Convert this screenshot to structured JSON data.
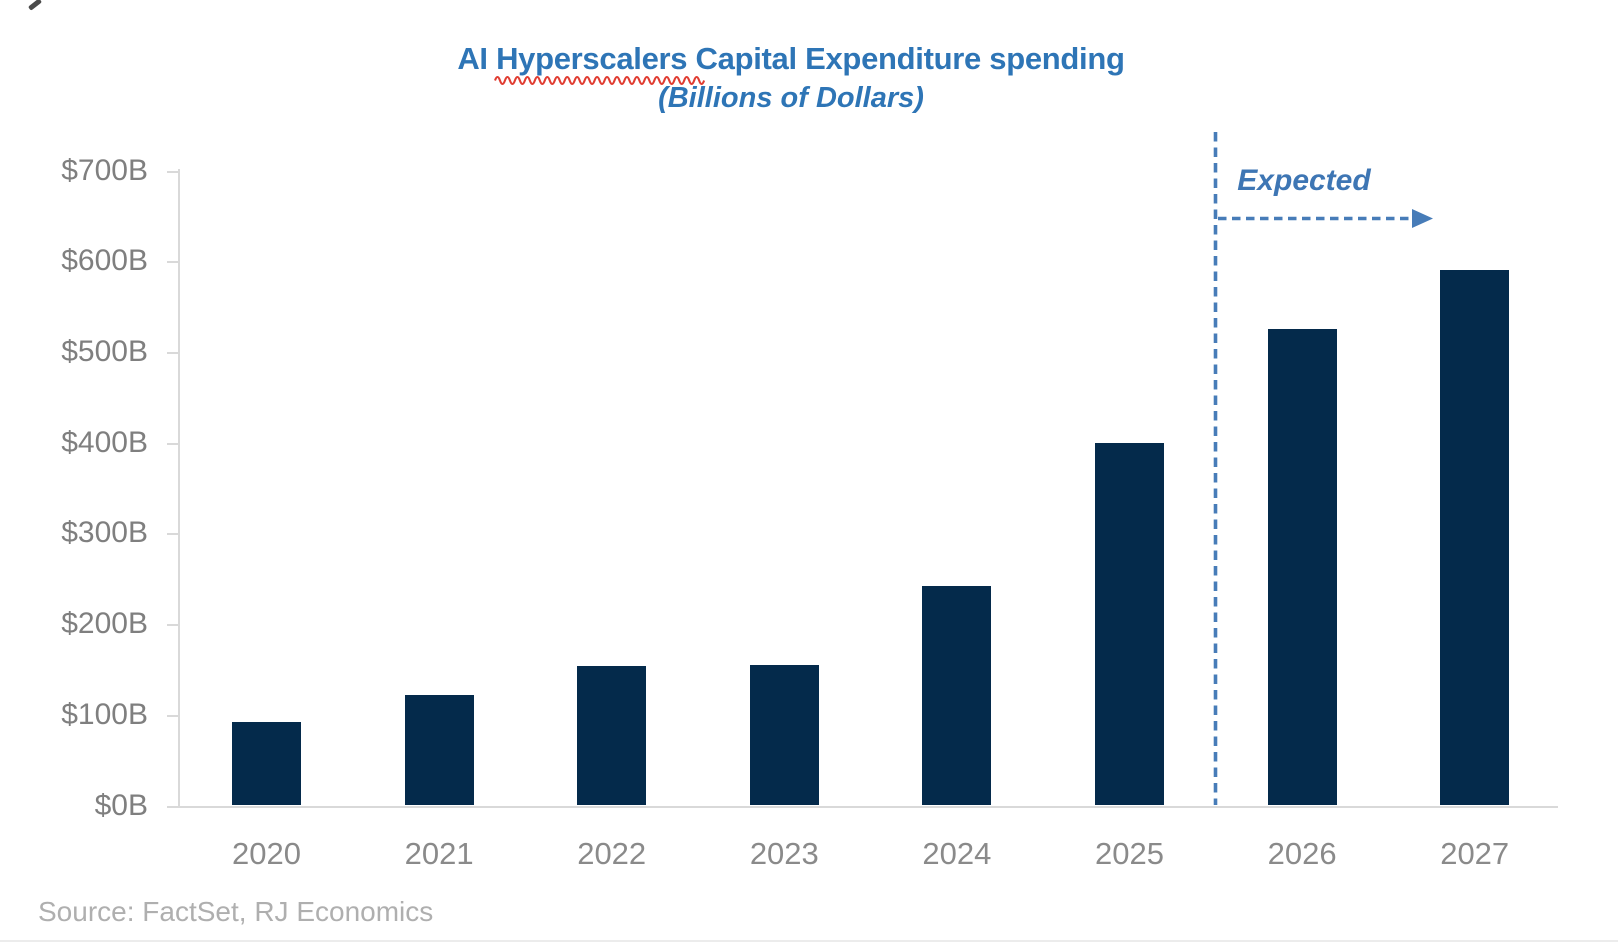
{
  "title": {
    "prefix": "AI",
    "misspelled_word": "Hyperscalers",
    "suffix": "Capital Expenditure spending",
    "subtitle": "(Billions of Dollars)"
  },
  "annotation": {
    "label": "Expected"
  },
  "source_note": "Source: FactSet, RJ Economics",
  "colors": {
    "title_blue": "#2E75B6",
    "annotation_blue": "#477CB8",
    "bar_navy": "#042A4B",
    "axis_gray": "#D9D9D9",
    "y_label_gray": "#7F7F7F",
    "x_label_gray": "#8A8A8A",
    "source_gray": "#AFAFAF",
    "squiggle_red": "#E03C31"
  },
  "chart_data": {
    "type": "bar",
    "title": "AI Hyperscalers Capital Expenditure spending",
    "subtitle": "(Billions of Dollars)",
    "categories": [
      "2020",
      "2021",
      "2022",
      "2023",
      "2024",
      "2025",
      "2026",
      "2027"
    ],
    "values": [
      92,
      122,
      154,
      155,
      242,
      400,
      525,
      590
    ],
    "unit": "Billions of USD",
    "xlabel": "",
    "ylabel": "",
    "ylim": [
      0,
      700
    ],
    "y_ticks": [
      "$0B",
      "$100B",
      "$200B",
      "$300B",
      "$400B",
      "$500B",
      "$600B",
      "$700B"
    ],
    "grid": false,
    "legend": "none",
    "expected_from_index": 6,
    "annotation": "Expected",
    "source": "Source: FactSet, RJ Economics"
  }
}
